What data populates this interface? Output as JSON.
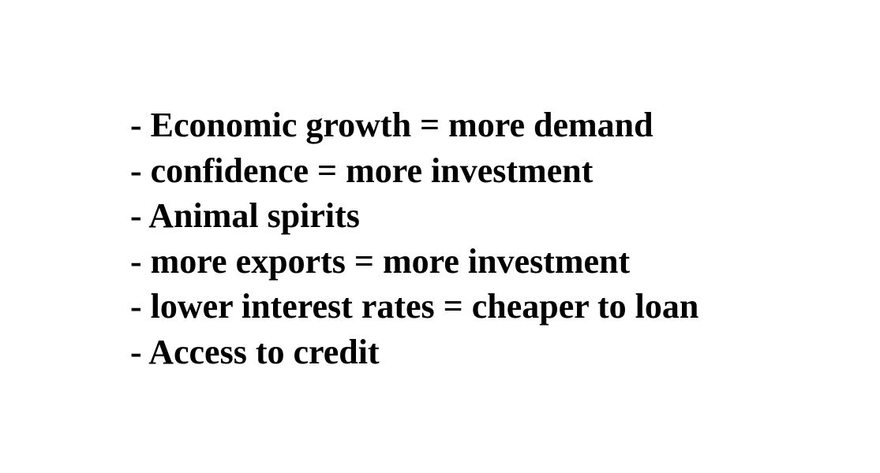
{
  "slide": {
    "bullets": [
      "- Economic growth = more demand",
      "- confidence = more investment",
      "- Animal spirits",
      "- more exports = more investment",
      "- lower interest rates = cheaper to loan",
      "- Access to credit"
    ],
    "text_color": "#000000",
    "background_color": "#ffffff"
  }
}
